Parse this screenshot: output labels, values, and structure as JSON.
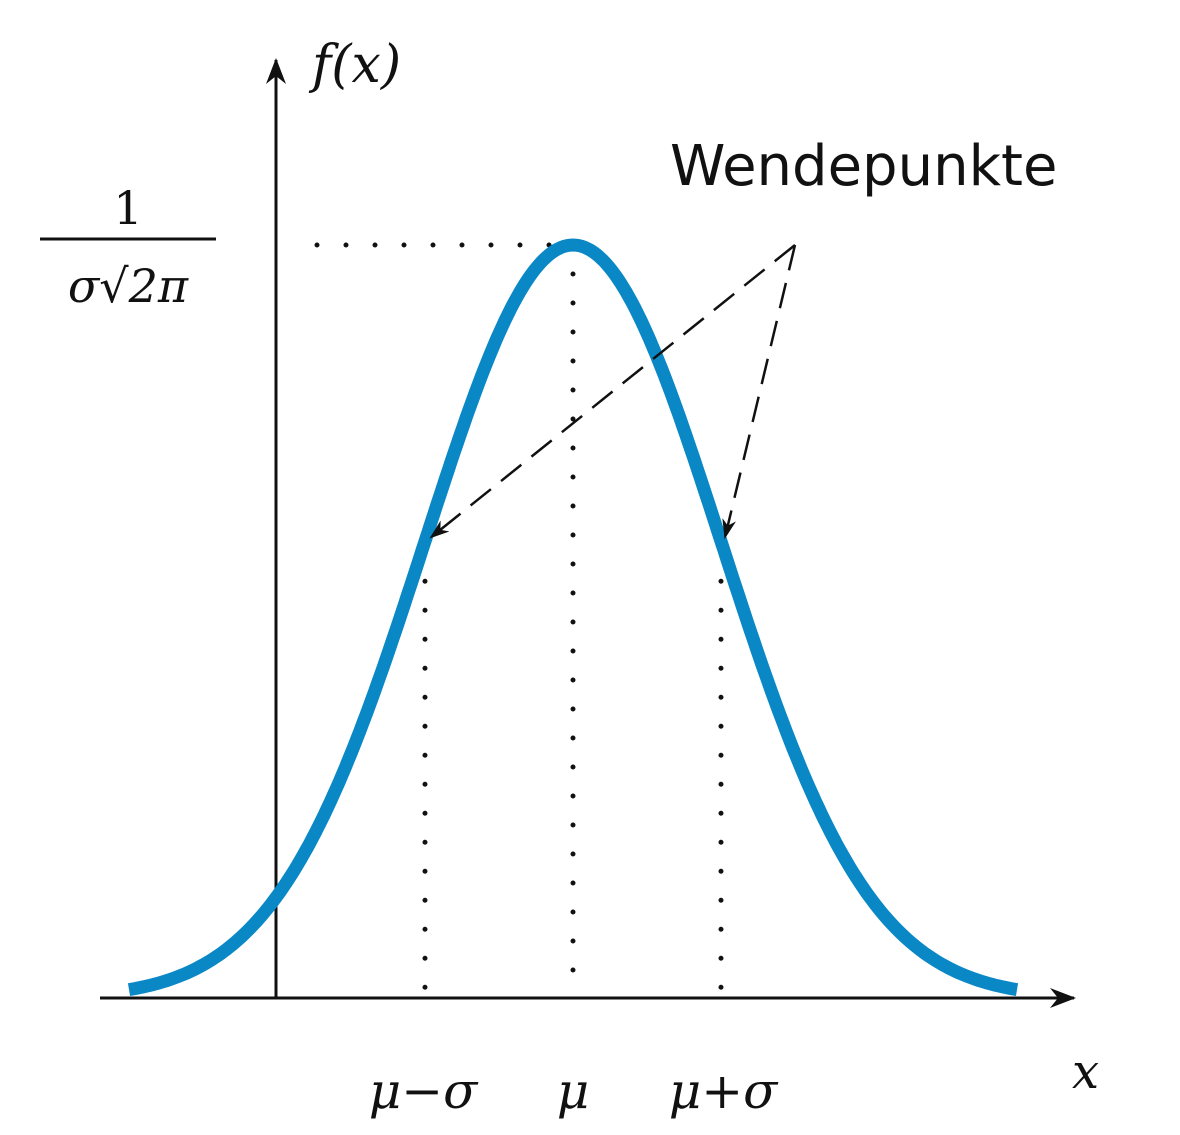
{
  "chart_data": {
    "type": "line",
    "function": "normal density",
    "mu": 0,
    "sigma": 1,
    "x_range": [
      -3,
      3
    ],
    "xlim": [
      -3.2,
      3.4
    ],
    "y_axis_at_x": -2,
    "series_color": "#0a88c6",
    "xlabel": "x",
    "ylabel": "f(x)",
    "x_ticks": [
      {
        "value": -1,
        "label": "μ−σ"
      },
      {
        "value": 0,
        "label": "μ"
      },
      {
        "value": 1,
        "label": "μ+σ"
      }
    ],
    "y_tick": {
      "numerator": "1",
      "denominator": "σ√2π"
    },
    "annotation": {
      "text": "Wendepunkte",
      "points_to_x": [
        -1,
        1
      ]
    },
    "grid": false
  }
}
